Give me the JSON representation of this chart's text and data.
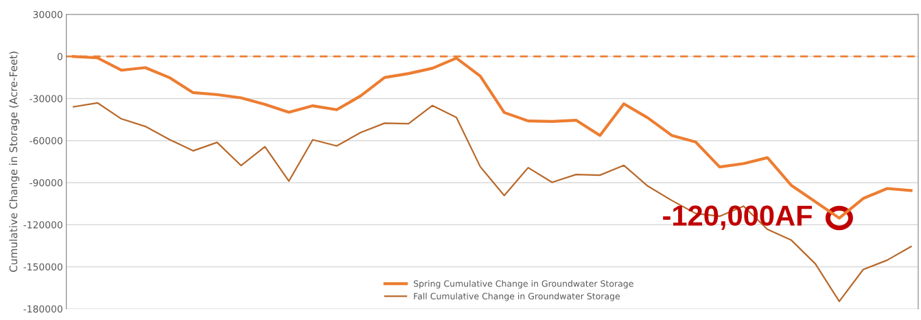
{
  "chart_data": {
    "type": "line",
    "ylabel": "Cumulative Change in Storage (Acre-Feet)",
    "categories": [
      null,
      null,
      null,
      null,
      null,
      null,
      null,
      null,
      null,
      null,
      null,
      null,
      null,
      null,
      null,
      null,
      null,
      null,
      null,
      null,
      null,
      null,
      null,
      null,
      null,
      null,
      null,
      null,
      null,
      null,
      null,
      null,
      null,
      null,
      null,
      null
    ],
    "series": [
      {
        "name": "Spring Cumulative Change in Groundwater Storage",
        "color": "#ed7d31",
        "values": [
          0,
          -1000,
          -9800,
          -8000,
          -15000,
          -25800,
          -27200,
          -29500,
          -34200,
          -39800,
          -35200,
          -38000,
          -28100,
          -15000,
          -12200,
          -8400,
          -1200,
          -14000,
          -40000,
          -46000,
          -46400,
          -45500,
          -56300,
          -33800,
          -43800,
          -56300,
          -61000,
          -78800,
          -76400,
          -72200,
          -92000,
          -103600,
          -115300,
          -101300,
          -94200,
          -95600
        ]
      },
      {
        "name": "Fall Cumulative Change in Groundwater Storage",
        "color": "#b8682a",
        "values": [
          -35900,
          -33100,
          -44500,
          -49900,
          -59200,
          -67300,
          -61300,
          -77800,
          -64400,
          -88900,
          -59400,
          -63800,
          -54300,
          -47600,
          -48000,
          -35000,
          -43500,
          -78700,
          -99200,
          -79300,
          -89800,
          -84200,
          -84700,
          -77700,
          -92500,
          -102700,
          -112000,
          -114000,
          -106800,
          -123300,
          -131100,
          -147900,
          -174700,
          -152000,
          -145300,
          -135600
        ]
      }
    ],
    "ylim": [
      -180000,
      30000
    ],
    "yticks": [
      -180000,
      -150000,
      -120000,
      -90000,
      -60000,
      -30000,
      0,
      30000
    ],
    "ref_lines": [
      {
        "axis": "y",
        "value": 0,
        "color": "#ed7d31",
        "line_style": "dashed"
      }
    ],
    "annotations": [
      "-120,000AF"
    ],
    "grid": "y",
    "legend": "bottom",
    "tick_labels": "y"
  }
}
